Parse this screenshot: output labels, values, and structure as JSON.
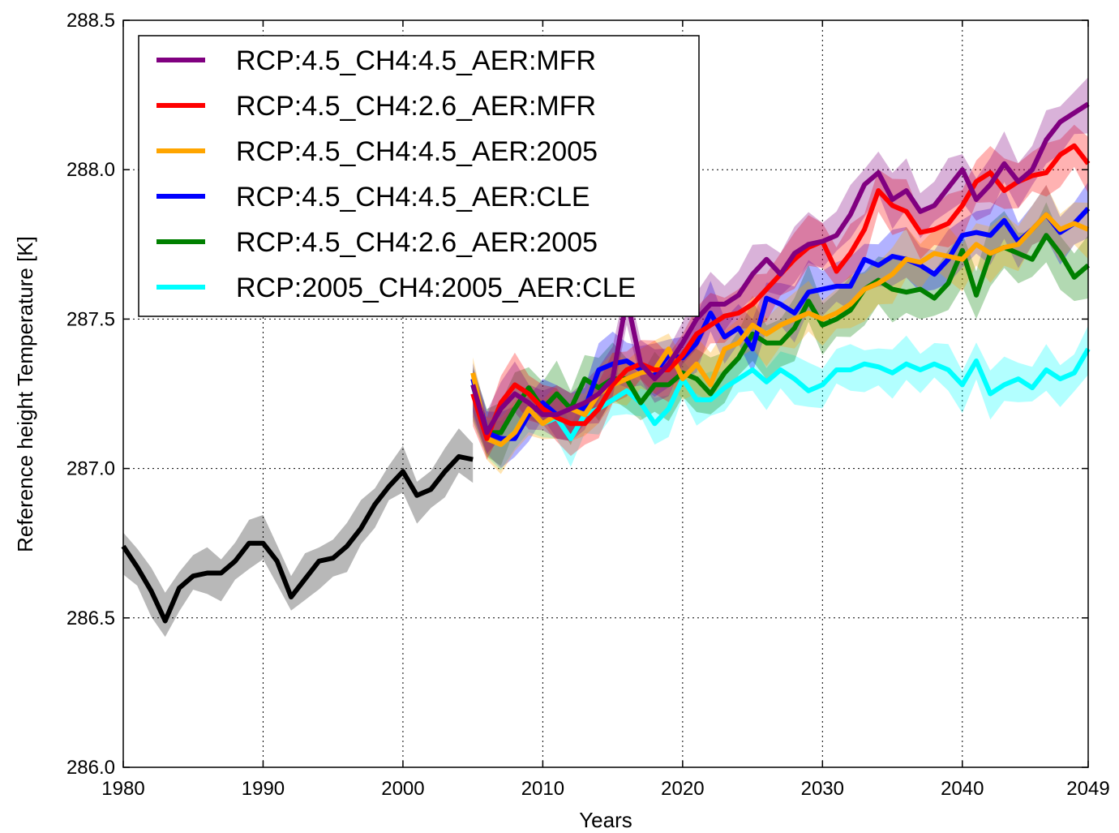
{
  "chart_data": {
    "type": "line",
    "title": "",
    "xlabel": "Years",
    "ylabel": "Reference height Temperature [K]",
    "xlim": [
      1980,
      2049
    ],
    "ylim": [
      286.0,
      288.5
    ],
    "xticks": [
      1980,
      1990,
      2000,
      2010,
      2020,
      2030,
      2040,
      2049
    ],
    "xtick_labels": [
      "1980",
      "1990",
      "2000",
      "2010",
      "2020",
      "2030",
      "2040",
      "2049"
    ],
    "yticks": [
      286.0,
      286.5,
      287.0,
      287.5,
      288.0,
      288.5
    ],
    "ytick_labels": [
      "286.0",
      "286.5",
      "287.0",
      "287.5",
      "288.0",
      "288.5"
    ],
    "grid": true,
    "legend_position": "top-left",
    "historical": {
      "color": "#000000",
      "x": [
        1980,
        1981,
        1982,
        1983,
        1984,
        1985,
        1986,
        1987,
        1988,
        1989,
        1990,
        1991,
        1992,
        1993,
        1994,
        1995,
        1996,
        1997,
        1998,
        1999,
        2000,
        2001,
        2002,
        2003,
        2004,
        2005
      ],
      "values": [
        286.74,
        286.67,
        286.59,
        286.49,
        286.6,
        286.64,
        286.65,
        286.65,
        286.69,
        286.75,
        286.75,
        286.69,
        286.57,
        286.63,
        286.69,
        286.7,
        286.74,
        286.8,
        286.88,
        286.94,
        286.99,
        286.91,
        286.93,
        286.99,
        287.04,
        287.03
      ],
      "spread": 0.07
    },
    "series": [
      {
        "name": "RCP:4.5_CH4:4.5_AER:MFR",
        "color": "#800080",
        "x": [
          2005,
          2006,
          2007,
          2008,
          2009,
          2010,
          2011,
          2012,
          2013,
          2014,
          2015,
          2016,
          2017,
          2018,
          2019,
          2020,
          2021,
          2022,
          2023,
          2024,
          2025,
          2026,
          2027,
          2028,
          2029,
          2030,
          2031,
          2032,
          2033,
          2034,
          2035,
          2036,
          2037,
          2038,
          2039,
          2040,
          2041,
          2042,
          2043,
          2044,
          2045,
          2046,
          2047,
          2048,
          2049
        ],
        "values": [
          287.28,
          287.12,
          287.2,
          287.25,
          287.22,
          287.18,
          287.18,
          287.2,
          287.22,
          287.25,
          287.3,
          287.57,
          287.35,
          287.3,
          287.35,
          287.42,
          287.5,
          287.55,
          287.55,
          287.58,
          287.65,
          287.7,
          287.65,
          287.72,
          287.75,
          287.76,
          287.78,
          287.85,
          287.95,
          287.99,
          287.9,
          287.93,
          287.86,
          287.88,
          287.94,
          288.0,
          287.9,
          287.95,
          288.02,
          287.96,
          288.0,
          288.1,
          288.16,
          288.19,
          288.22
        ],
        "spread": 0.08
      },
      {
        "name": "RCP:4.5_CH4:2.6_AER:MFR",
        "color": "#ff0000",
        "x": [
          2005,
          2006,
          2007,
          2008,
          2009,
          2010,
          2011,
          2012,
          2013,
          2014,
          2015,
          2016,
          2017,
          2018,
          2019,
          2020,
          2021,
          2022,
          2023,
          2024,
          2025,
          2026,
          2027,
          2028,
          2029,
          2030,
          2031,
          2032,
          2033,
          2034,
          2035,
          2036,
          2037,
          2038,
          2039,
          2040,
          2041,
          2042,
          2043,
          2044,
          2045,
          2046,
          2047,
          2048,
          2049
        ],
        "values": [
          287.25,
          287.1,
          287.22,
          287.28,
          287.25,
          287.2,
          287.17,
          287.15,
          287.15,
          287.2,
          287.28,
          287.33,
          287.35,
          287.33,
          287.33,
          287.38,
          287.45,
          287.48,
          287.51,
          287.52,
          287.55,
          287.6,
          287.65,
          287.7,
          287.74,
          287.76,
          287.66,
          287.72,
          287.8,
          287.93,
          287.88,
          287.86,
          287.79,
          287.8,
          287.82,
          287.88,
          287.96,
          287.99,
          287.93,
          287.96,
          287.98,
          287.99,
          288.05,
          288.08,
          288.02
        ],
        "spread": 0.08
      },
      {
        "name": "RCP:4.5_CH4:4.5_AER:2005",
        "color": "#ffa500",
        "x": [
          2005,
          2006,
          2007,
          2008,
          2009,
          2010,
          2011,
          2012,
          2013,
          2014,
          2015,
          2016,
          2017,
          2018,
          2019,
          2020,
          2021,
          2022,
          2023,
          2024,
          2025,
          2026,
          2027,
          2028,
          2029,
          2030,
          2031,
          2032,
          2033,
          2034,
          2035,
          2036,
          2037,
          2038,
          2039,
          2040,
          2041,
          2042,
          2043,
          2044,
          2045,
          2046,
          2047,
          2048,
          2049
        ],
        "values": [
          287.32,
          287.1,
          287.08,
          287.12,
          287.2,
          287.15,
          287.18,
          287.2,
          287.18,
          287.25,
          287.28,
          287.3,
          287.32,
          287.33,
          287.4,
          287.3,
          287.35,
          287.28,
          287.4,
          287.42,
          287.48,
          287.45,
          287.48,
          287.5,
          287.52,
          287.5,
          287.52,
          287.55,
          287.6,
          287.62,
          287.65,
          287.7,
          287.69,
          287.72,
          287.71,
          287.7,
          287.75,
          287.72,
          287.74,
          287.75,
          287.8,
          287.85,
          287.8,
          287.82,
          287.8
        ],
        "spread": 0.08
      },
      {
        "name": "RCP:4.5_CH4:4.5_AER:CLE",
        "color": "#0000ff",
        "x": [
          2005,
          2006,
          2007,
          2008,
          2009,
          2010,
          2011,
          2012,
          2013,
          2014,
          2015,
          2016,
          2017,
          2018,
          2019,
          2020,
          2021,
          2022,
          2023,
          2024,
          2025,
          2026,
          2027,
          2028,
          2029,
          2030,
          2031,
          2032,
          2033,
          2034,
          2035,
          2036,
          2037,
          2038,
          2039,
          2040,
          2041,
          2042,
          2043,
          2044,
          2045,
          2046,
          2047,
          2048,
          2049
        ],
        "values": [
          287.3,
          287.12,
          287.1,
          287.1,
          287.18,
          287.22,
          287.18,
          287.2,
          287.2,
          287.33,
          287.35,
          287.36,
          287.33,
          287.32,
          287.38,
          287.37,
          287.42,
          287.52,
          287.44,
          287.47,
          287.4,
          287.57,
          287.55,
          287.52,
          287.59,
          287.6,
          287.61,
          287.61,
          287.7,
          287.68,
          287.71,
          287.7,
          287.68,
          287.65,
          287.7,
          287.78,
          287.79,
          287.78,
          287.83,
          287.76,
          287.8,
          287.85,
          287.79,
          287.82,
          287.87
        ],
        "spread": 0.08
      },
      {
        "name": "RCP:4.5_CH4:2.6_AER:2005",
        "color": "#008000",
        "x": [
          2005,
          2006,
          2007,
          2008,
          2009,
          2010,
          2011,
          2012,
          2013,
          2014,
          2015,
          2016,
          2017,
          2018,
          2019,
          2020,
          2021,
          2022,
          2023,
          2024,
          2025,
          2026,
          2027,
          2028,
          2029,
          2030,
          2031,
          2032,
          2033,
          2034,
          2035,
          2036,
          2037,
          2038,
          2039,
          2040,
          2041,
          2042,
          2043,
          2044,
          2045,
          2046,
          2047,
          2048,
          2049
        ],
        "values": [
          287.28,
          287.12,
          287.12,
          287.2,
          287.27,
          287.2,
          287.25,
          287.2,
          287.3,
          287.27,
          287.3,
          287.3,
          287.22,
          287.28,
          287.28,
          287.32,
          287.3,
          287.25,
          287.32,
          287.37,
          287.45,
          287.42,
          287.42,
          287.47,
          287.56,
          287.48,
          287.5,
          287.53,
          287.6,
          287.63,
          287.6,
          287.59,
          287.6,
          287.57,
          287.62,
          287.73,
          287.58,
          287.72,
          287.74,
          287.72,
          287.7,
          287.78,
          287.72,
          287.64,
          287.68
        ],
        "spread": 0.09
      },
      {
        "name": "RCP:2005_CH4:2005_AER:CLE",
        "color": "#00ffff",
        "x": [
          2005,
          2006,
          2007,
          2008,
          2009,
          2010,
          2011,
          2012,
          2013,
          2014,
          2015,
          2016,
          2017,
          2018,
          2019,
          2020,
          2021,
          2022,
          2023,
          2024,
          2025,
          2026,
          2027,
          2028,
          2029,
          2030,
          2031,
          2032,
          2033,
          2034,
          2035,
          2036,
          2037,
          2038,
          2039,
          2040,
          2041,
          2042,
          2043,
          2044,
          2045,
          2046,
          2047,
          2048,
          2049
        ],
        "values": [
          287.28,
          287.1,
          287.08,
          287.12,
          287.2,
          287.15,
          287.17,
          287.1,
          287.18,
          287.2,
          287.23,
          287.26,
          287.22,
          287.15,
          287.2,
          287.3,
          287.23,
          287.23,
          287.27,
          287.3,
          287.33,
          287.29,
          287.33,
          287.3,
          287.26,
          287.28,
          287.33,
          287.33,
          287.35,
          287.34,
          287.32,
          287.35,
          287.33,
          287.35,
          287.33,
          287.28,
          287.36,
          287.25,
          287.28,
          287.3,
          287.27,
          287.33,
          287.3,
          287.32,
          287.4
        ],
        "spread": 0.07
      }
    ]
  }
}
